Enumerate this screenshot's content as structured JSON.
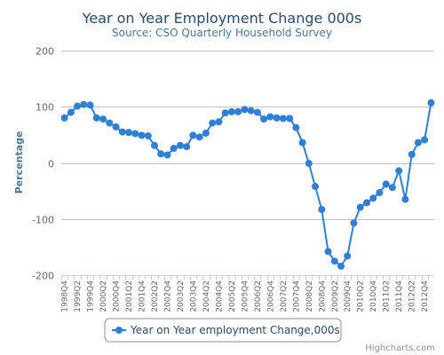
{
  "chart_data": {
    "type": "line",
    "title": "Year on Year Employment Change 000s",
    "subtitle": "Source: CSO Quarterly Household Survey",
    "xlabel": "",
    "ylabel": "Percentage",
    "ylim": [
      -200,
      200
    ],
    "yticks": [
      -200,
      -100,
      0,
      100,
      200
    ],
    "grid": true,
    "legend_position": "bottom-center",
    "categories": [
      "1998Q4",
      "1999Q1",
      "1999Q2",
      "1999Q3",
      "1999Q4",
      "2000Q1",
      "2000Q2",
      "2000Q3",
      "2000Q4",
      "2001Q1",
      "2001Q2",
      "2001Q3",
      "2001Q4",
      "2002Q1",
      "2002Q2",
      "2002Q3",
      "2002Q4",
      "2003Q1",
      "2003Q2",
      "2003Q3",
      "2003Q4",
      "2004Q1",
      "2004Q2",
      "2004Q3",
      "2004Q4",
      "2005Q1",
      "2005Q2",
      "2005Q3",
      "2005Q4",
      "2006Q1",
      "2006Q2",
      "2006Q3",
      "2006Q4",
      "2007Q1",
      "2007Q2",
      "2007Q3",
      "2007Q4",
      "2008Q1",
      "2008Q2",
      "2008Q3",
      "2008Q4",
      "2009Q1",
      "2009Q2",
      "2009Q3",
      "2009Q4",
      "2010Q1",
      "2010Q2",
      "2010Q3",
      "2010Q4",
      "2011Q1",
      "2011Q2",
      "2011Q3",
      "2011Q4",
      "2012Q1",
      "2012Q2",
      "2012Q3",
      "2012Q4",
      "2013Q1"
    ],
    "tick_labels": [
      "1998Q4",
      "1999Q2",
      "1999Q4",
      "2000Q2",
      "2000Q4",
      "2001Q2",
      "2001Q4",
      "2002Q2",
      "2002Q4",
      "2003Q2",
      "2003Q4",
      "2004Q2",
      "2004Q4",
      "2005Q2",
      "2005Q4",
      "2006Q2",
      "2006Q4",
      "2007Q2",
      "2007Q4",
      "2008Q2",
      "2008Q4",
      "2009Q2",
      "2009Q4",
      "2010Q2",
      "2010Q4",
      "2011Q2",
      "2011Q4",
      "2012Q2",
      "2012Q4"
    ],
    "series": [
      {
        "name": "Year on Year employment Change,000s",
        "color": "#2f7ed8",
        "values": [
          80,
          90,
          101,
          104,
          103,
          80,
          78,
          71,
          64,
          55,
          54,
          52,
          49,
          48,
          31,
          16,
          14,
          26,
          31,
          29,
          49,
          46,
          53,
          71,
          73,
          89,
          91,
          91,
          95,
          93,
          90,
          78,
          82,
          80,
          79,
          79,
          63,
          36,
          -1,
          -42,
          -83,
          -158,
          -175,
          -184,
          -166,
          -107,
          -79,
          -71,
          -63,
          -53,
          -38,
          -44,
          -14,
          -65,
          15,
          36,
          41,
          107
        ]
      }
    ]
  },
  "credits": "Highcharts.com"
}
